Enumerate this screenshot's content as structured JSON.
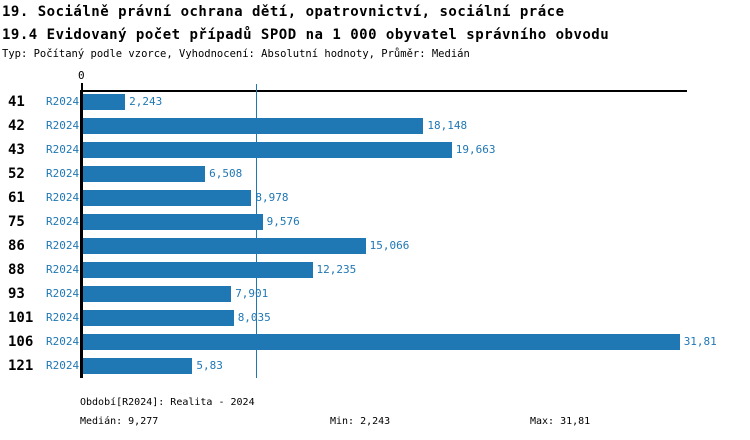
{
  "header": {
    "title_line1": "19. Sociálně právní ochrana dětí, opatrovnictví, sociální práce",
    "title_line2": "19.4 Evidovaný počet případů SPOD na 1 000 obyvatel správního obvodu",
    "subtitle": "Typ: Počítaný podle vzorce, Vyhodnocení: Absolutní hodnoty, Průměr: Medián"
  },
  "chart_data": {
    "type": "bar",
    "orientation": "horizontal",
    "title": "19.4 Evidovaný počet případů SPOD na 1 000 obyvatel správního obvodu",
    "categories": [
      "41",
      "42",
      "43",
      "52",
      "61",
      "75",
      "86",
      "88",
      "93",
      "101",
      "106",
      "121"
    ],
    "series": [
      {
        "name": "R2024",
        "values": [
          2.243,
          18.148,
          19.663,
          6.508,
          8.978,
          9.576,
          15.066,
          12.235,
          7.901,
          8.035,
          31.81,
          5.83
        ],
        "value_labels": [
          "2,243",
          "18,148",
          "19,663",
          "6,508",
          "8,978",
          "9,576",
          "15,066",
          "12,235",
          "7,901",
          "8,035",
          "31,81",
          "5,83"
        ]
      }
    ],
    "xlim": [
      0,
      32.2
    ],
    "x_tick_labels": [
      "0"
    ],
    "median": 9.277,
    "grid": false,
    "legend_position": "none",
    "bar_color": "#1f77b4",
    "median_line_color": "#1f77b4",
    "label_color": "#1f77b4"
  },
  "footer": {
    "period_label": "Období[R2024]: Realita - 2024",
    "median_label": "Medián: 9,277",
    "min_label": "Min: 2,243",
    "max_label": "Max: 31,81"
  }
}
